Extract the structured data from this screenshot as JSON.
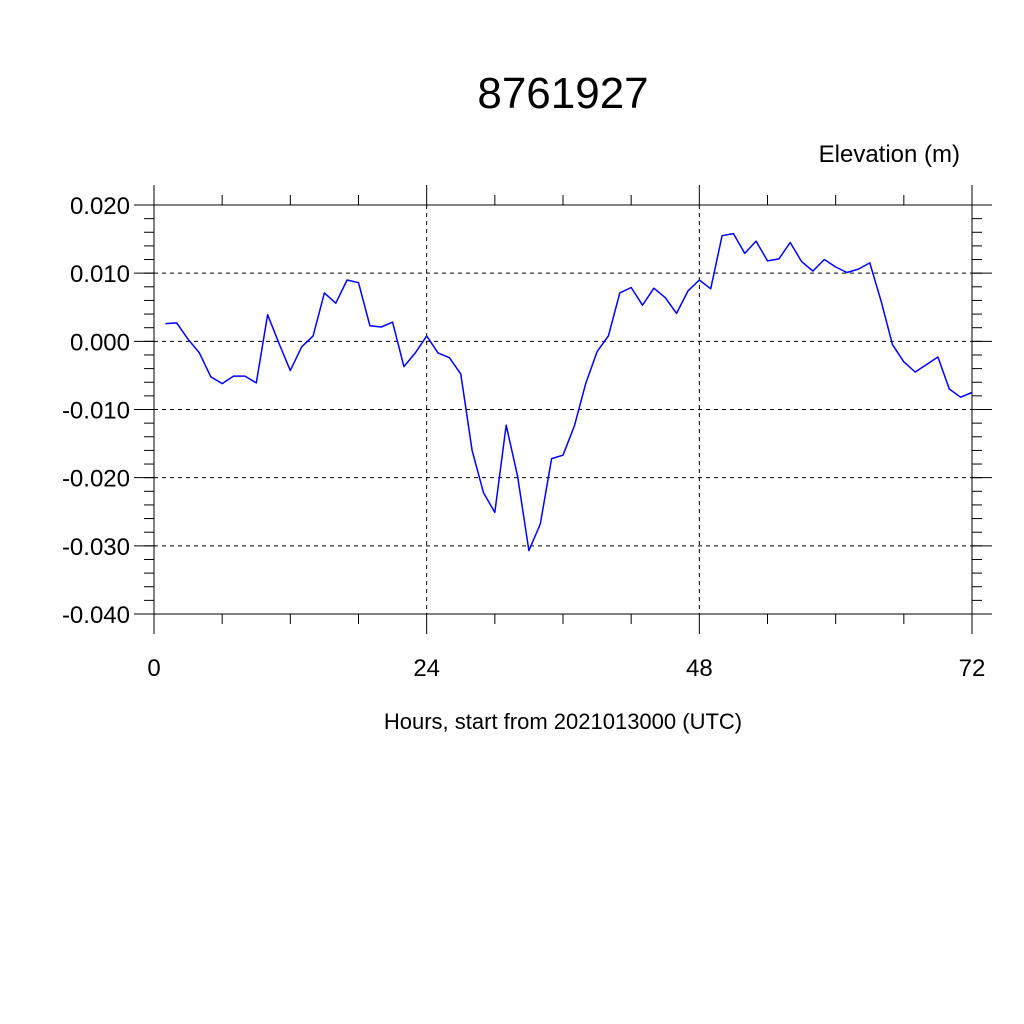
{
  "chart_data": {
    "type": "line",
    "title": "8761927",
    "ylabel": "Elevation (m)",
    "xlabel": "Hours, start from 2021013000 (UTC)",
    "xlim": [
      0,
      72
    ],
    "ylim": [
      -0.04,
      0.02
    ],
    "x_ticks": [
      0,
      24,
      48,
      72
    ],
    "x_tick_labels": [
      "0",
      "24",
      "48",
      "72"
    ],
    "y_ticks": [
      0.02,
      0.01,
      0.0,
      -0.01,
      -0.02,
      -0.03,
      -0.04
    ],
    "y_tick_labels": [
      "0.020",
      "0.010",
      "0.000",
      "-0.010",
      "-0.020",
      "-0.030",
      "-0.040"
    ],
    "grid": true,
    "grid_style": "dashed",
    "series": [
      {
        "color": "#0000ff",
        "x": [
          1,
          2,
          3,
          4,
          5,
          6,
          7,
          8,
          9,
          10,
          11,
          12,
          13,
          14,
          15,
          16,
          17,
          18,
          19,
          20,
          21,
          22,
          23,
          24,
          25,
          26,
          27,
          28,
          29,
          30,
          31,
          32,
          33,
          34,
          35,
          36,
          37,
          38,
          39,
          40,
          41,
          42,
          43,
          44,
          45,
          46,
          47,
          48,
          49,
          50,
          51,
          52,
          53,
          54,
          55,
          56,
          57,
          58,
          59,
          60,
          61,
          62,
          63,
          64,
          65,
          66,
          67,
          68,
          69,
          70,
          71,
          72
        ],
        "y": [
          0.0026,
          0.0027,
          0.0003,
          -0.0017,
          -0.0052,
          -0.0062,
          -0.0051,
          -0.0051,
          -0.0061,
          0.0039,
          -0.0003,
          -0.0043,
          -0.0008,
          0.0008,
          0.0071,
          0.0056,
          0.009,
          0.0086,
          0.0023,
          0.0021,
          0.0028,
          -0.0037,
          -0.0017,
          0.0008,
          -0.0017,
          -0.0024,
          -0.0048,
          -0.016,
          -0.0222,
          -0.0251,
          -0.0123,
          -0.0198,
          -0.0307,
          -0.0268,
          -0.0172,
          -0.0167,
          -0.0124,
          -0.0062,
          -0.0015,
          0.0008,
          0.0071,
          0.0079,
          0.0053,
          0.0078,
          0.0064,
          0.0041,
          0.0074,
          0.009,
          0.0077,
          0.0155,
          0.0158,
          0.0129,
          0.0147,
          0.0118,
          0.0121,
          0.0145,
          0.0117,
          0.0103,
          0.012,
          0.0109,
          0.0101,
          0.0106,
          0.0115,
          0.0059,
          -0.0005,
          -0.003,
          -0.0045,
          -0.0034,
          -0.0023,
          -0.007,
          -0.0082,
          -0.0075
        ]
      }
    ]
  }
}
